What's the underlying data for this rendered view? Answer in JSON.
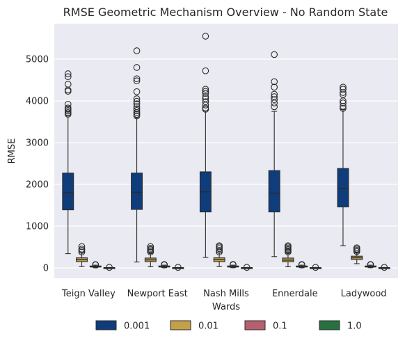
{
  "chart_data": {
    "type": "box",
    "title": "RMSE Geometric Mechanism Overview  - No Random State",
    "xlabel": "Wards",
    "ylabel": "RMSE",
    "ylim": [
      -250,
      5850
    ],
    "yticks": [
      0,
      1000,
      2000,
      3000,
      4000,
      5000
    ],
    "grid": true,
    "legend_position": "bottom",
    "colors": {
      "background": "#eaeaf2",
      "0.001": "#0f3d7c",
      "0.01": "#c4a04a",
      "0.1": "#b6606f",
      "1.0": "#27703f"
    },
    "categories": [
      "Teign Valley",
      "Newport East",
      "Nash Mills",
      "Ennerdale",
      "Ladywood"
    ],
    "series": [
      {
        "name": "0.001",
        "boxes": [
          {
            "whislo": 340,
            "q1": 1390,
            "med": 1800,
            "q3": 2270,
            "whishi": 3640,
            "fliers": [
              3680,
              3720,
              3760,
              3800,
              3830,
              3920,
              4230,
              4260,
              4400,
              4580,
              4650
            ]
          },
          {
            "whislo": 140,
            "q1": 1400,
            "med": 1810,
            "q3": 2270,
            "whishi": 3600,
            "fliers": [
              3640,
              3680,
              3720,
              3770,
              3810,
              3860,
              3930,
              3990,
              4050,
              4220,
              4480,
              4530,
              4800,
              5200
            ]
          },
          {
            "whislo": 250,
            "q1": 1340,
            "med": 1820,
            "q3": 2300,
            "whishi": 3760,
            "fliers": [
              3800,
              3830,
              3900,
              3980,
              4050,
              4100,
              4180,
              4230,
              4280,
              4720,
              5550
            ]
          },
          {
            "whislo": 270,
            "q1": 1340,
            "med": 1790,
            "q3": 2330,
            "whishi": 3750,
            "fliers": [
              3860,
              3950,
              4030,
              4100,
              4160,
              4330,
              4460,
              5110
            ]
          },
          {
            "whislo": 530,
            "q1": 1460,
            "med": 1900,
            "q3": 2380,
            "whishi": 3790,
            "fliers": [
              3820,
              3870,
              3950,
              4000,
              4150,
              4200,
              4280,
              4330
            ]
          }
        ]
      },
      {
        "name": "0.01",
        "boxes": [
          {
            "whislo": 30,
            "q1": 150,
            "med": 195,
            "q3": 240,
            "whishi": 360,
            "fliers": [
              380,
              420,
              450,
              510
            ]
          },
          {
            "whislo": 25,
            "q1": 150,
            "med": 190,
            "q3": 235,
            "whishi": 360,
            "fliers": [
              380,
              410,
              440,
              470,
              510
            ]
          },
          {
            "whislo": 30,
            "q1": 150,
            "med": 195,
            "q3": 240,
            "whishi": 360,
            "fliers": [
              380,
              420,
              460,
              500,
              530
            ]
          },
          {
            "whislo": 25,
            "q1": 145,
            "med": 185,
            "q3": 235,
            "whishi": 360,
            "fliers": [
              380,
              410,
              440,
              470,
              500,
              530
            ]
          },
          {
            "whislo": 100,
            "q1": 200,
            "med": 240,
            "q3": 280,
            "whishi": 370,
            "fliers": [
              390,
              420,
              450,
              480
            ]
          }
        ]
      },
      {
        "name": "0.1",
        "boxes": [
          {
            "whislo": 5,
            "q1": 25,
            "med": 35,
            "q3": 45,
            "whishi": 65,
            "fliers": [
              70,
              78
            ]
          },
          {
            "whislo": 5,
            "q1": 25,
            "med": 35,
            "q3": 45,
            "whishi": 65,
            "fliers": [
              70,
              80
            ]
          },
          {
            "whislo": 5,
            "q1": 25,
            "med": 35,
            "q3": 45,
            "whishi": 65,
            "fliers": [
              72,
              82
            ]
          },
          {
            "whislo": 5,
            "q1": 25,
            "med": 35,
            "q3": 45,
            "whishi": 65,
            "fliers": [
              70,
              80
            ]
          },
          {
            "whislo": 5,
            "q1": 25,
            "med": 35,
            "q3": 45,
            "whishi": 65,
            "fliers": [
              72,
              80
            ]
          }
        ]
      },
      {
        "name": "1.0",
        "boxes": [
          {
            "whislo": 0,
            "q1": 2,
            "med": 4,
            "q3": 6,
            "whishi": 10,
            "fliers": [
              12
            ]
          },
          {
            "whislo": 0,
            "q1": 2,
            "med": 4,
            "q3": 6,
            "whishi": 10,
            "fliers": [
              12
            ]
          },
          {
            "whislo": 0,
            "q1": 2,
            "med": 4,
            "q3": 6,
            "whishi": 10,
            "fliers": [
              12
            ]
          },
          {
            "whislo": 0,
            "q1": 2,
            "med": 4,
            "q3": 6,
            "whishi": 10,
            "fliers": [
              12
            ]
          },
          {
            "whislo": 0,
            "q1": 2,
            "med": 4,
            "q3": 6,
            "whishi": 10,
            "fliers": [
              12
            ]
          }
        ]
      }
    ]
  }
}
